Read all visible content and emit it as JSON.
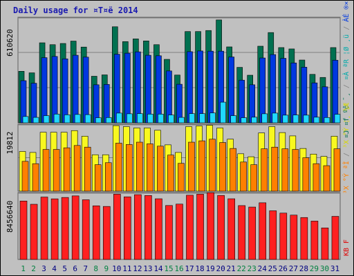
{
  "chart_data": {
    "type": "bar",
    "title": "Daily usage for ¤T¤ë 2014",
    "days": [
      "1",
      "2",
      "3",
      "4",
      "5",
      "6",
      "7",
      "8",
      "9",
      "10",
      "11",
      "12",
      "13",
      "14",
      "15",
      "16",
      "17",
      "18",
      "19",
      "20",
      "21",
      "22",
      "23",
      "24",
      "25",
      "26",
      "27",
      "28",
      "29",
      "30",
      "31"
    ],
    "weekend_days": [
      "1",
      "2",
      "8",
      "9",
      "15",
      "16",
      "22",
      "23",
      "29",
      "30"
    ],
    "panels": [
      {
        "id": "top",
        "ymax_label": "610620",
        "ymax": 610620,
        "legend": [
          {
            "text": "¤J ¤f ºô ¯¸",
            "color": "#007050"
          },
          {
            "text": " / ",
            "color": "#808080"
          },
          {
            "text": "¤À ªR ¦Ø ¸ü",
            "color": "#00aaaa"
          },
          {
            "text": " / ",
            "color": "#808080"
          },
          {
            "text": "ÀÉ ®×",
            "color": "#0038e0"
          }
        ],
        "series": [
          {
            "name": "",
            "color": "#007050",
            "values": [
              302000,
              293000,
              469000,
              458000,
              465000,
              479000,
              444000,
              273000,
              281000,
              563000,
              476000,
              492000,
              480000,
              458000,
              372000,
              280000,
              535000,
              535000,
              541000,
              603000,
              445000,
              325000,
              279000,
              449000,
              529000,
              441000,
              433000,
              368000,
              284000,
              266000,
              441000
            ]
          },
          {
            "name": "",
            "color": "#0038e0",
            "values": [
              247000,
              232000,
              382000,
              389000,
              375000,
              396000,
              385000,
              223000,
              225000,
              402000,
              408000,
              416000,
              396000,
              393000,
              304000,
              226000,
              417000,
              421000,
              420000,
              420000,
              386000,
              250000,
              223000,
              380000,
              400000,
              378000,
              351000,
              326000,
              234000,
              211000,
              367000
            ]
          },
          {
            "name": "",
            "color": "#20d8ff",
            "values": [
              37000,
              32000,
              42000,
              51000,
              47000,
              49000,
              48000,
              30000,
              31000,
              57000,
              53000,
              54000,
              51000,
              51000,
              46000,
              32000,
              54000,
              54000,
              58000,
              121000,
              42000,
              30000,
              33000,
              53000,
              57000,
              45000,
              46000,
              45000,
              33000,
              31000,
              50000
            ]
          }
        ]
      },
      {
        "id": "middle",
        "ymax_label": "19812",
        "ymax": 19812,
        "legend": [
          {
            "text": "³X °Ý ªÌ",
            "color": "#ff8000"
          },
          {
            "text": " / ",
            "color": "#808080"
          },
          {
            "text": "³X °Ý ¦¸ ¼Æ",
            "color": "#d8d800"
          }
        ],
        "series": [
          {
            "name": "",
            "color": "#f8f820",
            "values": [
              12000,
              11700,
              17800,
              17800,
              17800,
              18300,
              16600,
              11000,
              11000,
              19800,
              19500,
              19100,
              19100,
              18400,
              14000,
              11700,
              19500,
              19700,
              19900,
              19100,
              15700,
              11300,
              10400,
              17600,
              19500,
              17700,
              16700,
              12900,
              11200,
              10500,
              16600
            ]
          },
          {
            "name": "",
            "color": "#ff8000",
            "values": [
              9000,
              8300,
              12600,
              12600,
              13100,
              13800,
              13300,
              8000,
              8600,
              14500,
              14100,
              14800,
              14300,
              13600,
              10900,
              8400,
              14800,
              15200,
              15700,
              14700,
              12900,
              8800,
              8000,
              12800,
              13300,
              12800,
              12600,
              10100,
              8300,
              7700,
              12800
            ]
          }
        ]
      },
      {
        "id": "bottom",
        "ymax_label": "8456640",
        "ymax": 8456640,
        "legend": [
          {
            "text": "KB F",
            "color": "#e00000"
          }
        ],
        "series": [
          {
            "name": "",
            "color": "#ff2020",
            "values": [
              7540000,
              7120000,
              8050000,
              7820000,
              8000000,
              8200000,
              7700000,
              6920000,
              6840000,
              8420000,
              8080000,
              8360000,
              8250000,
              7830000,
              6960000,
              7140000,
              8290000,
              8420000,
              8610000,
              8260000,
              7830000,
              6950000,
              6760000,
              7310000,
              6280000,
              5980000,
              5720000,
              5410000,
              4950000,
              4070000,
              5560000
            ]
          }
        ]
      }
    ],
    "colors": {
      "background": "#c0c0c0",
      "title": "#1a1ab0",
      "gridline": "#808080",
      "weekday_label": "#000080",
      "weekend_label": "#008040"
    }
  }
}
